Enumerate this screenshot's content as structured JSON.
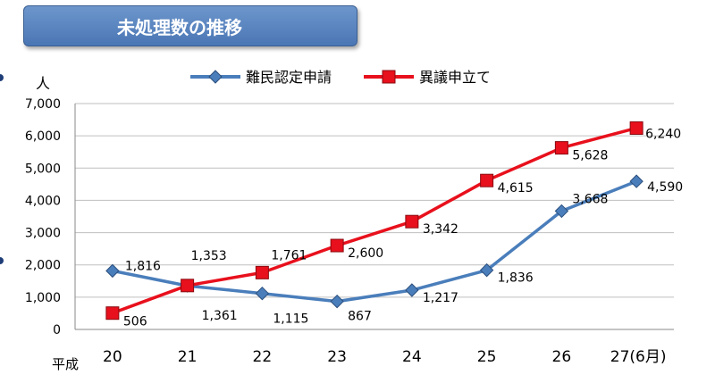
{
  "title": "未処理数の推移",
  "chart_data": {
    "type": "line",
    "title": "未処理数の推移",
    "ylabel": "人",
    "x_prefix": "平成",
    "categories": [
      "20",
      "21",
      "22",
      "23",
      "24",
      "25",
      "26",
      "27(6月)"
    ],
    "ylim": [
      0,
      7000
    ],
    "yticks": [
      0,
      1000,
      2000,
      3000,
      4000,
      5000,
      6000,
      7000
    ],
    "ytick_labels": [
      "0",
      "1,000",
      "2,000",
      "3,000",
      "4,000",
      "5,000",
      "6,000",
      "7,000"
    ],
    "grid": true,
    "legend": "top-center",
    "series": [
      {
        "name": "難民認定申請",
        "color": "#4a7ebb",
        "marker": "diamond",
        "values": [
          1816,
          1353,
          1115,
          867,
          1217,
          1836,
          3668,
          4590
        ],
        "labels": [
          "1,816",
          "1,353",
          "1,115",
          "867",
          "1,217",
          "1,836",
          "3,668",
          "4,590"
        ]
      },
      {
        "name": "異議申立て",
        "color": "#e8101c",
        "marker": "square",
        "values": [
          506,
          1361,
          1761,
          2600,
          3342,
          4615,
          5628,
          6240
        ],
        "labels": [
          "506",
          "1,361",
          "1,761",
          "2,600",
          "3,342",
          "4,615",
          "5,628",
          "6,240"
        ]
      }
    ]
  }
}
